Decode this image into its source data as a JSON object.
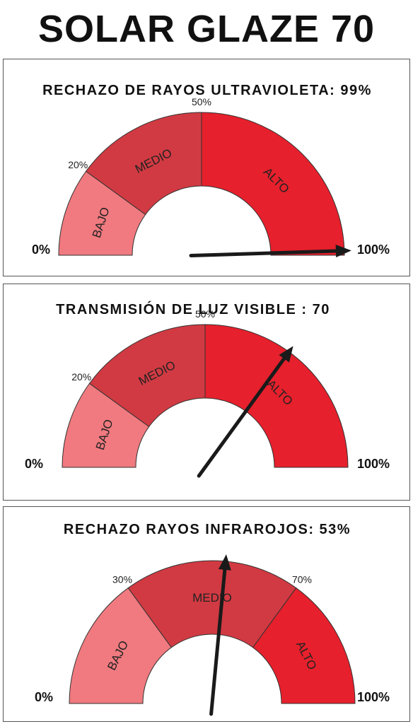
{
  "title": "SOLAR GLAZE 70",
  "colors": {
    "bajo": "#f07a7f",
    "medio": "#d13a42",
    "alto": "#e6202c",
    "needle": "#1a1a1a",
    "stroke": "#333333"
  },
  "chart_data": [
    {
      "type": "gauge",
      "title": "RECHAZO DE RAYOS ULTRAVIOLETA: 99%",
      "value": 99,
      "range": [
        0,
        100
      ],
      "min_label": "0%",
      "max_label": "100%",
      "zones": [
        {
          "label": "BAJO",
          "from": 0,
          "to": 20,
          "color_key": "bajo"
        },
        {
          "label": "MEDIO",
          "from": 20,
          "to": 50,
          "color_key": "medio"
        },
        {
          "label": "ALTO",
          "from": 50,
          "to": 100,
          "color_key": "alto"
        }
      ],
      "boundary_labels": [
        "20%",
        "50%"
      ]
    },
    {
      "type": "gauge",
      "title": "TRANSMISIÓN DE LUZ VISIBLE : 70",
      "value": 70,
      "range": [
        0,
        100
      ],
      "min_label": "0%",
      "max_label": "100%",
      "zones": [
        {
          "label": "BAJO",
          "from": 0,
          "to": 20,
          "color_key": "bajo"
        },
        {
          "label": "MEDIO",
          "from": 20,
          "to": 50,
          "color_key": "medio"
        },
        {
          "label": "ALTO",
          "from": 50,
          "to": 100,
          "color_key": "alto"
        }
      ],
      "boundary_labels": [
        "20%",
        "50%"
      ]
    },
    {
      "type": "gauge",
      "title": "RECHAZO RAYOS INFRAROJOS: 53%",
      "value": 53,
      "range": [
        0,
        100
      ],
      "min_label": "0%",
      "max_label": "100%",
      "zones": [
        {
          "label": "BAJO",
          "from": 0,
          "to": 30,
          "color_key": "bajo"
        },
        {
          "label": "MEDIO",
          "from": 30,
          "to": 70,
          "color_key": "medio"
        },
        {
          "label": "ALTO",
          "from": 70,
          "to": 100,
          "color_key": "alto"
        }
      ],
      "boundary_labels": [
        "30%",
        "70%"
      ]
    }
  ]
}
